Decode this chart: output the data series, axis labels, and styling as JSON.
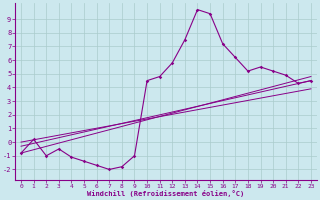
{
  "xlabel": "Windchill (Refroidissement éolien,°C)",
  "bg_color": "#cce8ee",
  "grid_color": "#aacccc",
  "line_color": "#880088",
  "xlim": [
    -0.5,
    23.5
  ],
  "ylim": [
    -2.8,
    10.2
  ],
  "xticks": [
    0,
    1,
    2,
    3,
    4,
    5,
    6,
    7,
    8,
    9,
    10,
    11,
    12,
    13,
    14,
    15,
    16,
    17,
    18,
    19,
    20,
    21,
    22,
    23
  ],
  "yticks": [
    -2,
    -1,
    0,
    1,
    2,
    3,
    4,
    5,
    6,
    7,
    8,
    9
  ],
  "main_x": [
    0,
    1,
    2,
    3,
    4,
    5,
    6,
    7,
    8,
    9,
    10,
    11,
    12,
    13,
    14,
    15,
    16,
    17,
    18,
    19,
    20,
    21,
    22,
    23
  ],
  "main_y": [
    -0.8,
    0.2,
    -1.0,
    -0.5,
    -1.1,
    -1.4,
    -1.7,
    -2.0,
    -1.8,
    -1.0,
    4.5,
    4.8,
    5.8,
    7.5,
    9.7,
    9.4,
    7.2,
    6.2,
    5.2,
    5.5,
    5.2,
    4.9,
    4.3,
    4.5
  ],
  "trend1_x": [
    0,
    23
  ],
  "trend1_y": [
    -0.8,
    4.8
  ],
  "trend2_x": [
    0,
    23
  ],
  "trend2_y": [
    -0.3,
    4.5
  ],
  "trend3_x": [
    0,
    23
  ],
  "trend3_y": [
    0.0,
    3.9
  ]
}
